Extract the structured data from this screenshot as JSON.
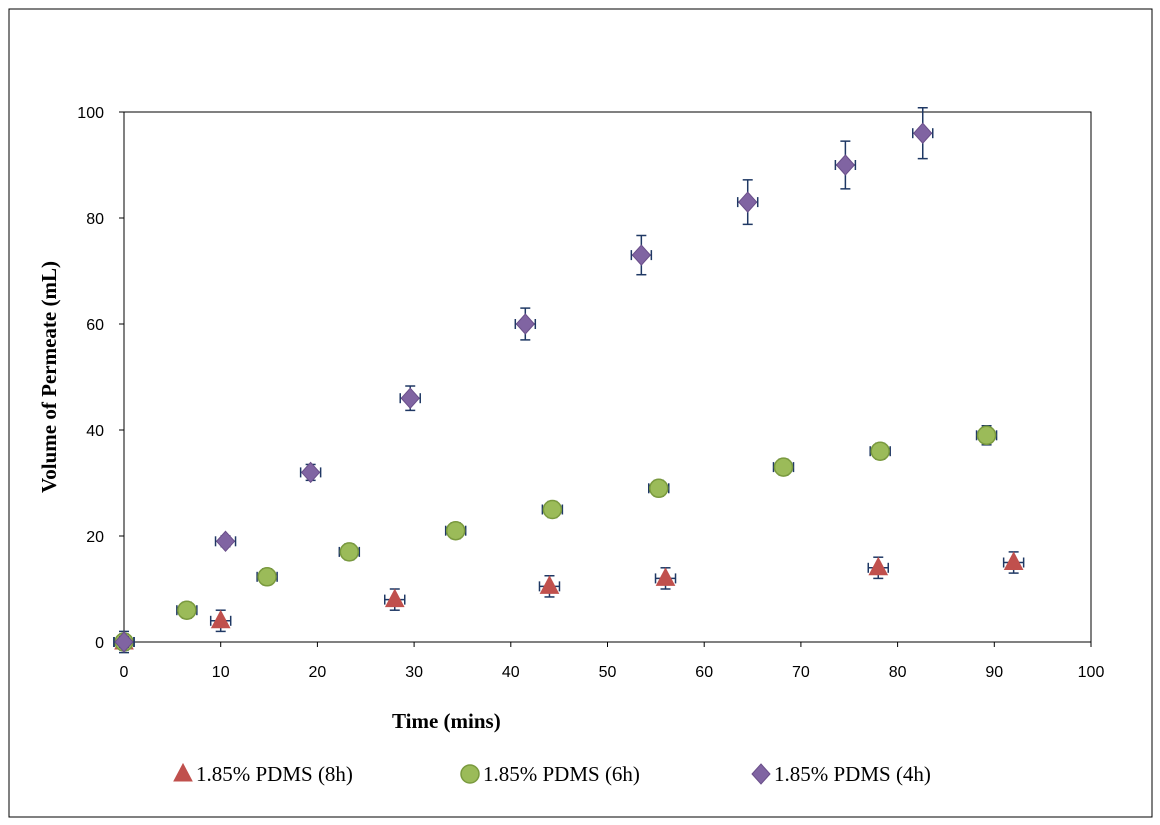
{
  "chart_data": {
    "type": "scatter",
    "xlabel": "Time (mins)",
    "ylabel": "Volume of Permeate (mL)",
    "xlim": [
      0,
      100
    ],
    "ylim": [
      0,
      100
    ],
    "xticks": [
      "0",
      "10",
      "20",
      "30",
      "40",
      "50",
      "60",
      "70",
      "80",
      "90",
      "100"
    ],
    "yticks": [
      "0",
      "20",
      "40",
      "60",
      "80",
      "100"
    ],
    "grid": false,
    "legend_position": "bottom",
    "series": [
      {
        "name": "1.85% PDMS (8h)",
        "marker": "triangle",
        "color": "#c0504d",
        "x": [
          0,
          10,
          28,
          44,
          56,
          78,
          92
        ],
        "y": [
          0,
          4,
          8,
          10.5,
          12,
          14,
          15
        ],
        "yerr": [
          2,
          2,
          2,
          2,
          2,
          2,
          2
        ]
      },
      {
        "name": "1.85% PDMS (6h)",
        "marker": "circle",
        "color": "#9bbb59",
        "x": [
          0,
          6.5,
          14.8,
          23.3,
          34.3,
          44.3,
          55.3,
          68.2,
          78.2,
          89.2
        ],
        "y": [
          0,
          6,
          12.3,
          17,
          21,
          25,
          29,
          33,
          36,
          39
        ],
        "yerr": [
          1.5,
          1.5,
          1.5,
          1.5,
          1.5,
          1.5,
          1.5,
          1.5,
          1.5,
          1.8
        ]
      },
      {
        "name": "1.85% PDMS (4h)",
        "marker": "diamond",
        "color": "#8064a2",
        "x": [
          0,
          10.5,
          19.3,
          29.6,
          41.5,
          53.5,
          64.5,
          74.6,
          82.6
        ],
        "y": [
          0,
          19,
          32,
          46,
          60,
          73,
          83,
          90,
          96
        ],
        "yerr": [
          1,
          1,
          1.5,
          2.3,
          3,
          3.7,
          4.2,
          4.5,
          4.8
        ]
      }
    ]
  }
}
